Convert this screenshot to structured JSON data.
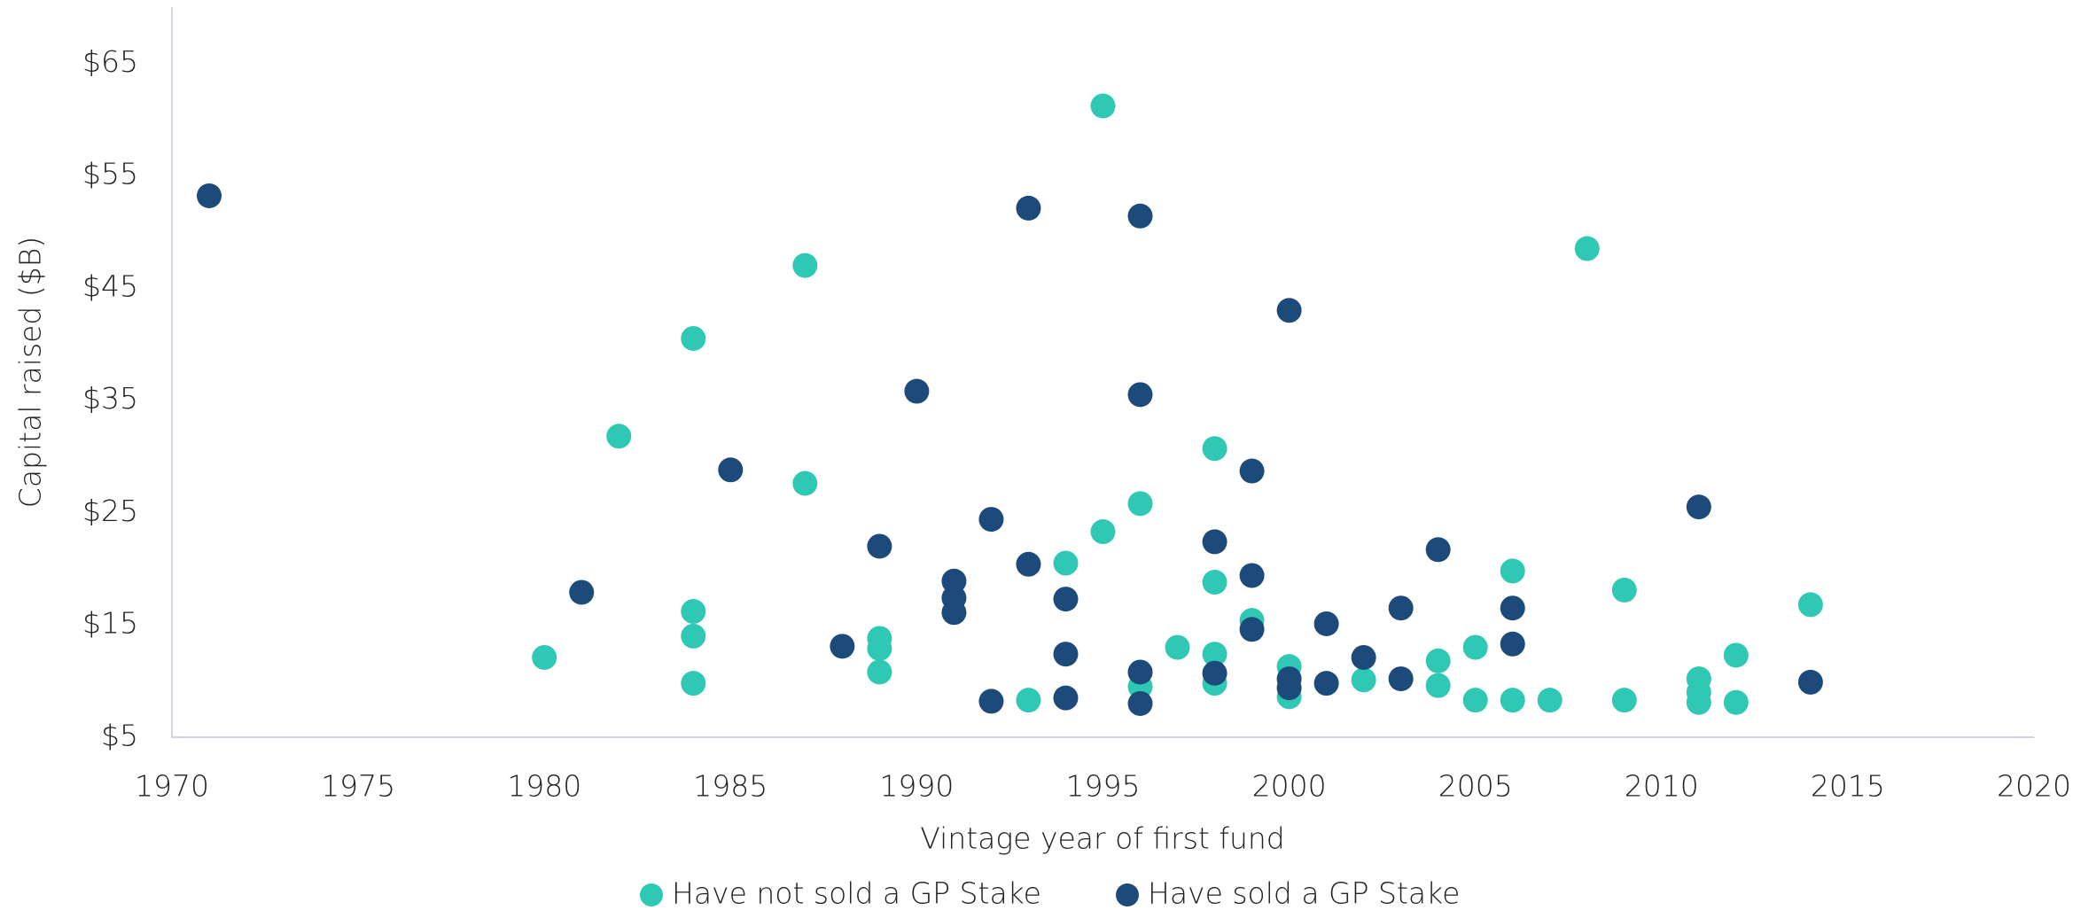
{
  "chart_data": {
    "type": "scatter",
    "x_label": "Vintage year of first fund",
    "y_label": "Capital raised ($B)",
    "xlim": [
      1970,
      2020
    ],
    "xticks": [
      1970,
      1975,
      1980,
      1985,
      1990,
      1995,
      2000,
      2005,
      2010,
      2015,
      2020
    ],
    "ylim": [
      5,
      70
    ],
    "yticks": [
      {
        "value": 5,
        "label": "$5"
      },
      {
        "value": 15,
        "label": "$15"
      },
      {
        "value": 25,
        "label": "$25"
      },
      {
        "value": 35,
        "label": "$35"
      },
      {
        "value": 45,
        "label": "$45"
      },
      {
        "value": 55,
        "label": "$55"
      },
      {
        "value": 65,
        "label": "$65"
      }
    ],
    "grid": false,
    "legend": "bottom",
    "series": [
      {
        "name": "Have not sold a GP Stake",
        "color": "#2ec8b4",
        "x": [
          1980,
          1982,
          1984,
          1984,
          1984,
          1984,
          1987,
          1987,
          1989,
          1989,
          1989,
          1993,
          1994,
          1995,
          1995,
          1996,
          1996,
          1997,
          1998,
          1998,
          1998,
          1998,
          1999,
          2000,
          2000,
          2002,
          2004,
          2004,
          2005,
          2005,
          2006,
          2006,
          2007,
          2008,
          2009,
          2009,
          2011,
          2011,
          2011,
          2012,
          2012,
          2014
        ],
        "values": [
          12.1,
          31.8,
          40.5,
          16.2,
          14.0,
          9.8,
          47.0,
          27.6,
          13.8,
          12.9,
          10.8,
          8.3,
          20.5,
          61.2,
          23.3,
          25.8,
          9.5,
          13.0,
          30.7,
          18.8,
          12.4,
          9.8,
          15.4,
          11.3,
          8.6,
          10.1,
          11.8,
          9.6,
          13.0,
          8.3,
          19.8,
          8.3,
          8.3,
          48.5,
          18.1,
          8.3,
          10.2,
          9.0,
          8.1,
          12.3,
          8.1,
          16.8
        ]
      },
      {
        "name": "Have sold a GP Stake",
        "color": "#1c4a7a",
        "x": [
          1971,
          1981,
          1985,
          1988,
          1989,
          1990,
          1991,
          1991,
          1991,
          1992,
          1992,
          1993,
          1993,
          1994,
          1994,
          1994,
          1996,
          1996,
          1996,
          1996,
          1998,
          1998,
          1999,
          1999,
          1999,
          2000,
          2000,
          2000,
          2001,
          2001,
          2002,
          2003,
          2003,
          2004,
          2006,
          2006,
          2011,
          2014
        ],
        "values": [
          53.2,
          17.9,
          28.8,
          13.1,
          22.0,
          35.8,
          18.9,
          17.4,
          16.1,
          24.4,
          8.2,
          52.1,
          20.4,
          17.3,
          12.4,
          8.5,
          51.4,
          35.5,
          10.8,
          8.0,
          22.4,
          10.7,
          28.7,
          19.4,
          14.6,
          43.0,
          10.2,
          9.4,
          15.1,
          9.8,
          12.1,
          16.5,
          10.2,
          21.7,
          16.5,
          13.3,
          25.5,
          9.9
        ]
      }
    ]
  }
}
